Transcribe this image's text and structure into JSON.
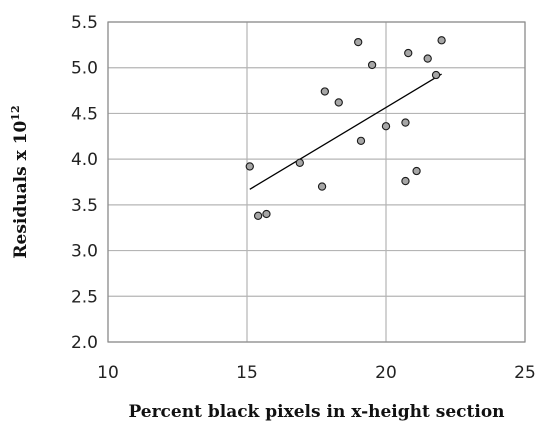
{
  "chart_data": {
    "type": "scatter",
    "xlabel": "Percent black pixels in x-height section",
    "ylabel": "Residuals x 10",
    "ylabel_exp": "12",
    "xlim": [
      10,
      25
    ],
    "ylim": [
      2.0,
      5.5
    ],
    "xticks": [
      10,
      15,
      20,
      25
    ],
    "xtick_labels": [
      "10",
      "15",
      "20",
      "25"
    ],
    "yticks": [
      2.0,
      2.5,
      3.0,
      3.5,
      4.0,
      4.5,
      5.0,
      5.5
    ],
    "ytick_labels": [
      "2.0",
      "2.5",
      "3.0",
      "3.5",
      "4.0",
      "4.5",
      "5.0",
      "5.5"
    ],
    "grid": true,
    "series": [
      {
        "points": [
          [
            15.1,
            3.92
          ],
          [
            15.4,
            3.38
          ],
          [
            15.7,
            3.4
          ],
          [
            16.9,
            3.96
          ],
          [
            17.7,
            3.7
          ],
          [
            17.8,
            4.74
          ],
          [
            18.3,
            4.62
          ],
          [
            19.0,
            5.28
          ],
          [
            19.1,
            4.2
          ],
          [
            19.5,
            5.03
          ],
          [
            20.0,
            4.36
          ],
          [
            20.7,
            4.4
          ],
          [
            20.7,
            3.76
          ],
          [
            20.8,
            5.16
          ],
          [
            21.1,
            3.87
          ],
          [
            21.5,
            5.1
          ],
          [
            21.8,
            4.92
          ],
          [
            22.0,
            5.3
          ]
        ]
      }
    ],
    "trendline": {
      "x": [
        15.1,
        22.0
      ],
      "y": [
        3.67,
        4.93
      ]
    }
  }
}
